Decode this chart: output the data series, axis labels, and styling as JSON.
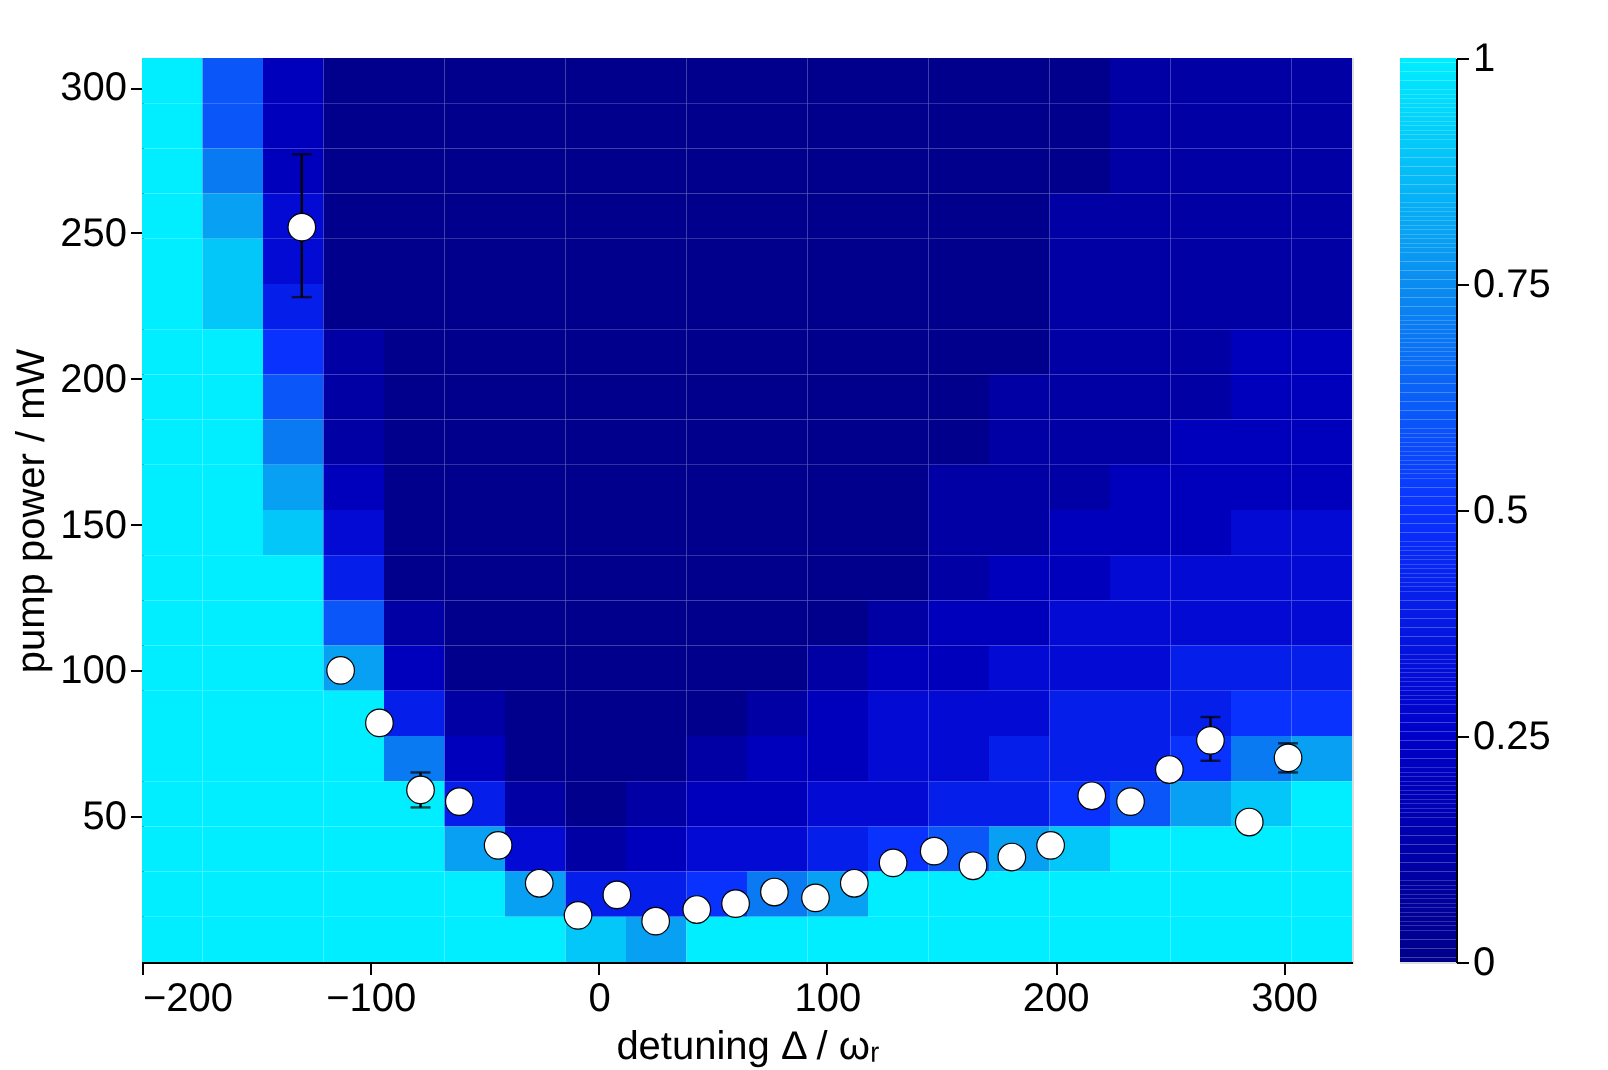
{
  "chart_data": {
    "type": "heatmap",
    "xlabel": "detuning Δ / ωᵣ",
    "ylabel": "pump power / mW",
    "xlim": [
      -200,
      330
    ],
    "ylim": [
      0,
      310
    ],
    "xticks": [
      -200,
      -100,
      0,
      100,
      200,
      300
    ],
    "yticks": [
      50,
      100,
      150,
      200,
      250,
      300
    ],
    "clim": [
      0,
      1
    ],
    "cticks": [
      0,
      0.25,
      0.5,
      0.75,
      1
    ],
    "colors": [
      "#00008c",
      "#0000c8",
      "#0a32ff",
      "#0a8cf0",
      "#00eeff"
    ],
    "grid": false,
    "marker": "circle",
    "x": [
      -186.75,
      -160.25,
      -133.75,
      -107.25,
      -80.75,
      -54.25,
      -27.75,
      -1.25,
      25.25,
      51.75,
      78.25,
      104.75,
      131.25,
      157.75,
      184.25,
      210.75,
      237.25,
      263.75,
      290.25,
      316.75
    ],
    "y": [
      302.25,
      286.75,
      271.25,
      255.75,
      240.25,
      224.75,
      209.25,
      193.75,
      178.25,
      162.75,
      147.25,
      131.75,
      116.25,
      100.75,
      85.25,
      69.75,
      54.25,
      38.75,
      23.25,
      7.75
    ],
    "cells": [
      [
        1,
        0.6,
        0.2,
        0,
        0,
        0,
        0,
        0,
        0,
        0,
        0,
        0,
        0,
        0,
        0,
        0,
        0.1,
        0.1,
        0.1,
        0.1
      ],
      [
        1,
        0.6,
        0.2,
        0,
        0,
        0,
        0,
        0,
        0,
        0,
        0,
        0,
        0,
        0,
        0,
        0,
        0.1,
        0.1,
        0.1,
        0.1
      ],
      [
        1,
        0.7,
        0.2,
        0,
        0,
        0,
        0,
        0,
        0,
        0,
        0,
        0,
        0,
        0,
        0,
        0,
        0.1,
        0.1,
        0.1,
        0.1
      ],
      [
        1,
        0.8,
        0.3,
        0,
        0,
        0,
        0,
        0,
        0,
        0,
        0,
        0,
        0,
        0,
        0,
        0.1,
        0.1,
        0.1,
        0.1,
        0.1
      ],
      [
        1,
        0.9,
        0.3,
        0,
        0,
        0,
        0,
        0,
        0,
        0,
        0,
        0,
        0,
        0,
        0,
        0.1,
        0.1,
        0.1,
        0.1,
        0.1
      ],
      [
        1,
        0.9,
        0.4,
        0,
        0,
        0,
        0,
        0,
        0,
        0,
        0,
        0,
        0,
        0,
        0,
        0.1,
        0.1,
        0.1,
        0.1,
        0.1
      ],
      [
        1,
        1,
        0.5,
        0.1,
        0,
        0,
        0,
        0,
        0,
        0,
        0,
        0,
        0,
        0,
        0,
        0.1,
        0.1,
        0.1,
        0.2,
        0.2
      ],
      [
        1,
        1,
        0.6,
        0.1,
        0,
        0,
        0,
        0,
        0,
        0,
        0,
        0,
        0,
        0,
        0.1,
        0.1,
        0.1,
        0.1,
        0.2,
        0.2
      ],
      [
        1,
        1,
        0.7,
        0.1,
        0,
        0,
        0,
        0,
        0,
        0,
        0,
        0,
        0,
        0,
        0.1,
        0.1,
        0.1,
        0.2,
        0.2,
        0.2
      ],
      [
        1,
        1,
        0.8,
        0.2,
        0,
        0,
        0,
        0,
        0,
        0,
        0,
        0,
        0,
        0.1,
        0.1,
        0.1,
        0.2,
        0.2,
        0.2,
        0.2
      ],
      [
        1,
        1,
        0.9,
        0.3,
        0,
        0,
        0,
        0,
        0,
        0,
        0,
        0,
        0,
        0.1,
        0.1,
        0.2,
        0.2,
        0.2,
        0.3,
        0.3
      ],
      [
        1,
        1,
        1,
        0.4,
        0,
        0,
        0,
        0,
        0,
        0,
        0,
        0,
        0,
        0.1,
        0.2,
        0.2,
        0.3,
        0.3,
        0.3,
        0.3
      ],
      [
        1,
        1,
        1,
        0.6,
        0.1,
        0,
        0,
        0,
        0,
        0,
        0,
        0,
        0.1,
        0.2,
        0.2,
        0.3,
        0.3,
        0.3,
        0.3,
        0.3
      ],
      [
        1,
        1,
        1,
        0.8,
        0.2,
        0,
        0,
        0,
        0,
        0,
        0,
        0.1,
        0.2,
        0.2,
        0.3,
        0.3,
        0.3,
        0.4,
        0.4,
        0.4
      ],
      [
        1,
        1,
        1,
        1,
        0.4,
        0.1,
        0,
        0,
        0,
        0,
        0.1,
        0.2,
        0.3,
        0.3,
        0.3,
        0.4,
        0.4,
        0.4,
        0.5,
        0.5
      ],
      [
        1,
        1,
        1,
        1,
        0.7,
        0.2,
        0,
        0,
        0,
        0.1,
        0.2,
        0.2,
        0.3,
        0.3,
        0.4,
        0.4,
        0.4,
        0.5,
        0.7,
        0.8
      ],
      [
        1,
        1,
        1,
        1,
        1,
        0.4,
        0.1,
        0,
        0.1,
        0.2,
        0.2,
        0.3,
        0.3,
        0.4,
        0.4,
        0.5,
        0.6,
        0.8,
        0.9,
        1
      ],
      [
        1,
        1,
        1,
        1,
        1,
        0.8,
        0.3,
        0.1,
        0.2,
        0.3,
        0.3,
        0.4,
        0.5,
        0.6,
        0.8,
        0.9,
        1,
        1,
        1,
        1
      ],
      [
        1,
        1,
        1,
        1,
        1,
        1,
        0.8,
        0.4,
        0.4,
        0.5,
        0.7,
        0.8,
        1,
        1,
        1,
        1,
        1,
        1,
        1,
        1
      ],
      [
        1,
        1,
        1,
        1,
        1,
        1,
        1,
        0.9,
        0.8,
        1,
        1,
        1,
        1,
        1,
        1,
        1,
        1,
        1,
        1,
        1
      ]
    ],
    "series": [
      {
        "type": "scatter",
        "color": "#ffffff",
        "x": [
          -130,
          -113,
          -96,
          -78,
          -61,
          -44,
          -26,
          -9,
          8,
          25,
          43,
          60,
          77,
          95,
          112,
          129,
          147,
          164,
          181,
          198,
          216,
          233,
          250,
          268,
          285,
          302
        ],
        "values": [
          252,
          100,
          82,
          59,
          55,
          40,
          27,
          16,
          23,
          14,
          18,
          20,
          24,
          22,
          27,
          34,
          38,
          33,
          36,
          40,
          57,
          55,
          66,
          76,
          48,
          70
        ],
        "errors": [
          [
            228,
            277
          ],
          null,
          null,
          [
            53,
            65
          ],
          null,
          null,
          null,
          null,
          null,
          null,
          null,
          null,
          null,
          null,
          null,
          null,
          null,
          null,
          null,
          null,
          null,
          null,
          null,
          [
            69,
            84
          ],
          null,
          [
            65,
            75
          ]
        ]
      }
    ]
  }
}
